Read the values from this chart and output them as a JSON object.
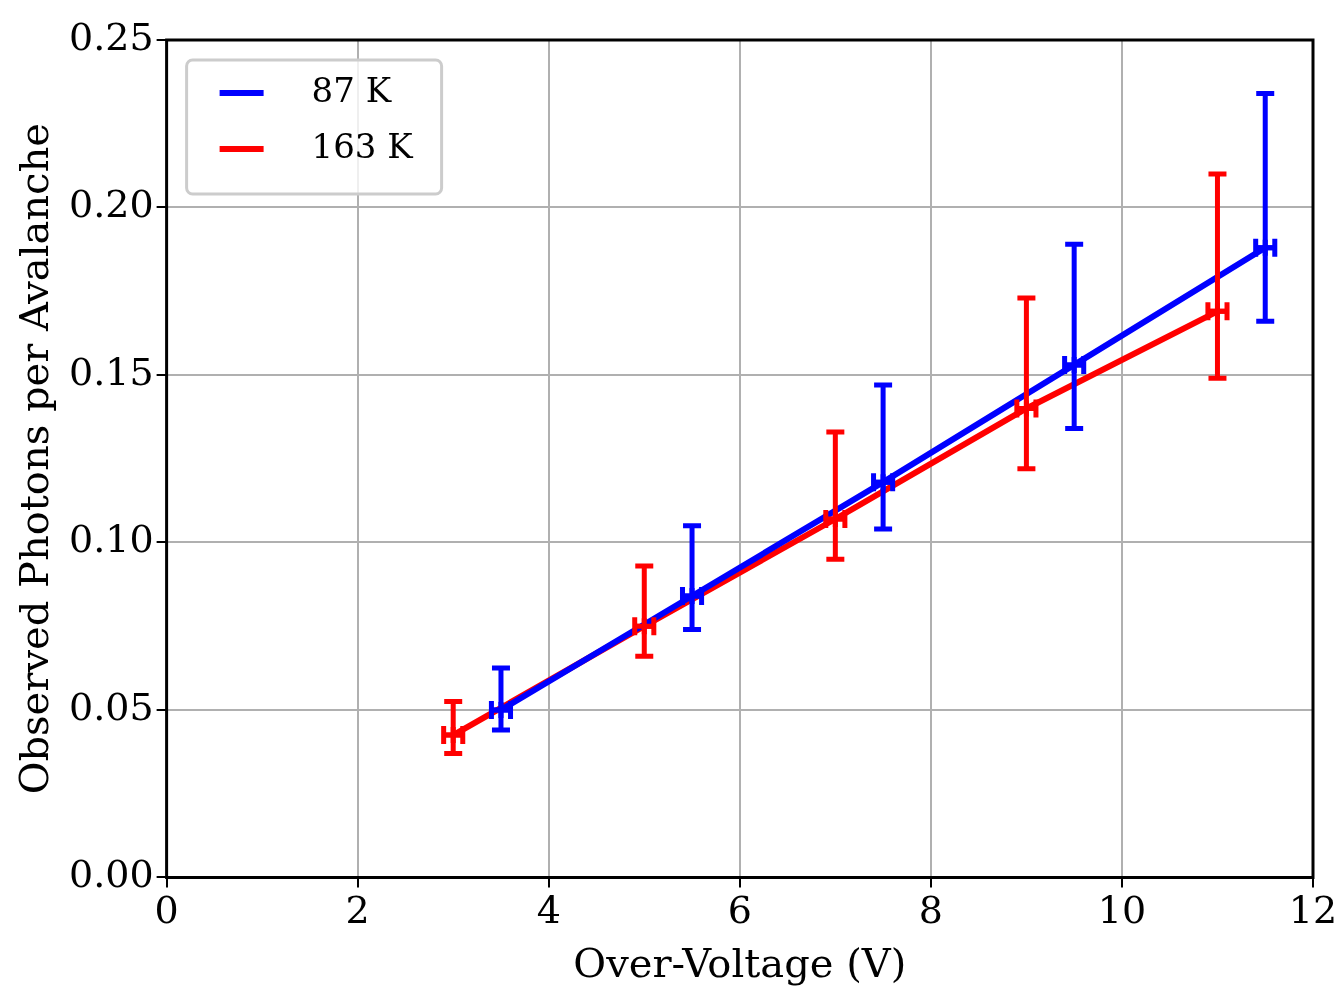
{
  "chart_data": {
    "type": "line",
    "xlabel": "Over-Voltage (V)",
    "ylabel": "Observed Photons per Avalanche",
    "xlim": [
      0,
      12
    ],
    "xticks": [
      0,
      2,
      4,
      6,
      8,
      10,
      12
    ],
    "ylim": [
      0,
      0.25
    ],
    "yticks": [
      {
        "value": 0,
        "label": "0.00"
      },
      {
        "value": 0.05,
        "label": "0.05"
      },
      {
        "value": 0.1,
        "label": "0.10"
      },
      {
        "value": 0.15,
        "label": "0.15"
      },
      {
        "value": 0.2,
        "label": "0.20"
      },
      {
        "value": 0.25,
        "label": "0.25"
      }
    ],
    "grid": true,
    "legend": "top left",
    "marker": "cross",
    "line_style": "solid",
    "series": [
      {
        "name": "87 K",
        "color": "#0000ff",
        "x": [
          3.5,
          5.5,
          7.5,
          9.5,
          11.5
        ],
        "values": [
          0.05,
          0.084,
          0.118,
          0.153,
          0.188
        ],
        "errors": [
          [
            0.044,
            0.0625
          ],
          [
            0.074,
            0.105
          ],
          [
            0.104,
            0.147
          ],
          [
            0.134,
            0.189
          ],
          [
            0.166,
            0.234
          ]
        ],
        "xerrors": [
          0.1,
          0.1,
          0.1,
          0.1,
          0.1
        ]
      },
      {
        "name": "163 K",
        "color": "#ff0000",
        "x": [
          3,
          5,
          7,
          9,
          11
        ],
        "values": [
          0.0425,
          0.075,
          0.107,
          0.14,
          0.169
        ],
        "errors": [
          [
            0.037,
            0.0525
          ],
          [
            0.066,
            0.093
          ],
          [
            0.095,
            0.133
          ],
          [
            0.122,
            0.173
          ],
          [
            0.149,
            0.21
          ]
        ],
        "xerrors": [
          0.1,
          0.1,
          0.1,
          0.1,
          0.1
        ]
      }
    ]
  }
}
